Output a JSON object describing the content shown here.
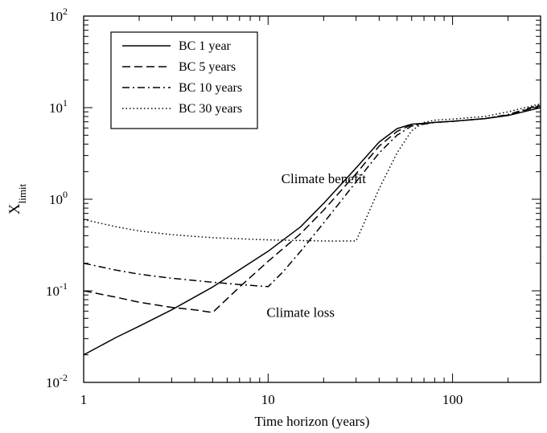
{
  "chart_data": {
    "type": "line",
    "title": "",
    "xlabel": "Time horizon (years)",
    "ylabel_main": "X",
    "ylabel_sub": "limit",
    "xscale": "log",
    "yscale": "log",
    "xlim": [
      1,
      300
    ],
    "ylim": [
      0.01,
      100
    ],
    "x_ticks": [
      {
        "value": 1,
        "label": "1"
      },
      {
        "value": 10,
        "label": "10"
      },
      {
        "value": 100,
        "label": "100"
      }
    ],
    "y_ticks": [
      {
        "value": 0.01,
        "base": "10",
        "exp": "-2"
      },
      {
        "value": 0.1,
        "base": "10",
        "exp": "-1"
      },
      {
        "value": 1,
        "base": "10",
        "exp": "0"
      },
      {
        "value": 10,
        "base": "10",
        "exp": "1"
      },
      {
        "value": 100,
        "base": "10",
        "exp": "2"
      }
    ],
    "grid": false,
    "legend_position": "top-left",
    "series": [
      {
        "name": "BC 1 year",
        "dash": "solid",
        "points": [
          [
            1,
            0.02
          ],
          [
            1.5,
            0.031
          ],
          [
            2,
            0.041
          ],
          [
            3,
            0.062
          ],
          [
            5,
            0.11
          ],
          [
            7,
            0.17
          ],
          [
            10,
            0.27
          ],
          [
            15,
            0.5
          ],
          [
            20,
            0.9
          ],
          [
            30,
            2.2
          ],
          [
            40,
            4.2
          ],
          [
            50,
            5.9
          ],
          [
            60,
            6.6
          ],
          [
            80,
            6.9
          ],
          [
            100,
            7.1
          ],
          [
            150,
            7.6
          ],
          [
            200,
            8.2
          ],
          [
            300,
            10.0
          ]
        ]
      },
      {
        "name": "BC 5 years",
        "dash": "dashed",
        "points": [
          [
            1,
            0.1
          ],
          [
            1.5,
            0.085
          ],
          [
            2,
            0.075
          ],
          [
            3,
            0.066
          ],
          [
            4,
            0.062
          ],
          [
            5,
            0.058
          ],
          [
            7,
            0.11
          ],
          [
            10,
            0.21
          ],
          [
            15,
            0.42
          ],
          [
            20,
            0.76
          ],
          [
            30,
            1.9
          ],
          [
            40,
            3.8
          ],
          [
            50,
            5.5
          ],
          [
            60,
            6.5
          ],
          [
            80,
            6.9
          ],
          [
            100,
            7.1
          ],
          [
            150,
            7.6
          ],
          [
            200,
            8.3
          ],
          [
            300,
            10.5
          ]
        ]
      },
      {
        "name": "BC 10 years",
        "dash": "dashdot",
        "points": [
          [
            1,
            0.2
          ],
          [
            1.5,
            0.168
          ],
          [
            2,
            0.152
          ],
          [
            3,
            0.137
          ],
          [
            5,
            0.124
          ],
          [
            7,
            0.117
          ],
          [
            10,
            0.111
          ],
          [
            12,
            0.16
          ],
          [
            15,
            0.27
          ],
          [
            20,
            0.55
          ],
          [
            30,
            1.55
          ],
          [
            40,
            3.2
          ],
          [
            50,
            5.0
          ],
          [
            60,
            6.3
          ],
          [
            80,
            6.9
          ],
          [
            100,
            7.1
          ],
          [
            150,
            7.6
          ],
          [
            200,
            8.4
          ],
          [
            300,
            10.8
          ]
        ]
      },
      {
        "name": "BC 30 years",
        "dash": "dotted",
        "points": [
          [
            1,
            0.6
          ],
          [
            1.5,
            0.5
          ],
          [
            2,
            0.45
          ],
          [
            3,
            0.41
          ],
          [
            5,
            0.38
          ],
          [
            10,
            0.36
          ],
          [
            20,
            0.35
          ],
          [
            30,
            0.35
          ],
          [
            40,
            1.3
          ],
          [
            50,
            3.2
          ],
          [
            60,
            5.6
          ],
          [
            70,
            6.9
          ],
          [
            80,
            7.3
          ],
          [
            100,
            7.5
          ],
          [
            150,
            8.0
          ],
          [
            200,
            9.0
          ],
          [
            300,
            11.0
          ]
        ]
      }
    ],
    "annotations": [
      {
        "text": "Climate benefit",
        "x": 20,
        "y": 1.5
      },
      {
        "text": "Climate loss",
        "x": 15,
        "y": 0.052
      }
    ]
  }
}
